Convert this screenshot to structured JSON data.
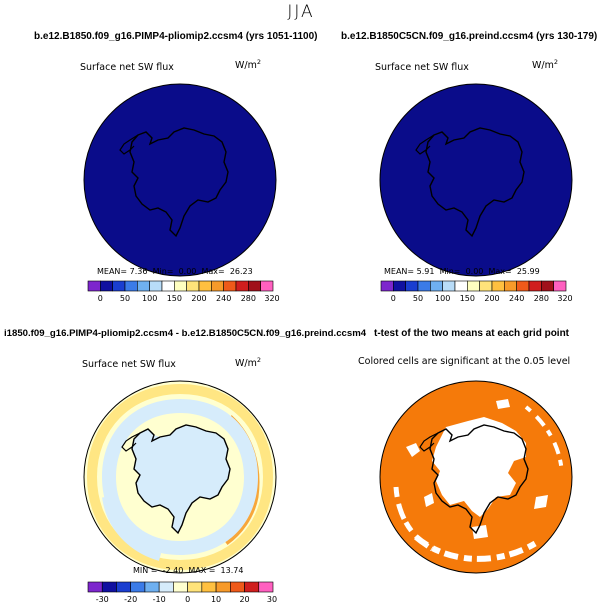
{
  "page_title": "JJA",
  "colors": {
    "ocean_uniform": "#0a0c8a",
    "pos_light": "#ffffd0",
    "neg_light": "#d6ecfb",
    "pos_yellow": "#ffe37a",
    "pos_orange": "#f7a63a",
    "signif": "#f57a0a"
  },
  "panels": [
    {
      "title": "b.e12.B1850.f09_g16.PIMP4-pliomip2.ccsm4 (yrs 1051-1100)",
      "variable": "Surface net SW flux",
      "units_base": "W/m",
      "units_exp": "2",
      "stats": {
        "mean_label": "MEAN=",
        "mean": "7.36",
        "min_label": "Min=",
        "min": "0.00",
        "max_label": "Max=",
        "max": "26.23"
      }
    },
    {
      "title": "b.e12.B1850C5CN.f09_g16.preind.ccsm4 (yrs 130-179)",
      "variable": "Surface net SW flux",
      "units_base": "W/m",
      "units_exp": "2",
      "stats": {
        "mean_label": "MEAN=",
        "mean": "5.91",
        "min_label": "Min=",
        "min": "0.00",
        "max_label": "Max=",
        "max": "25.99"
      }
    },
    {
      "title": "i1850.f09_g16.PIMP4-pliomip2.ccsm4 - b.e12.B1850C5CN.f09_g16.preind.ccsm4",
      "variable": "Surface net SW flux",
      "units_base": "W/m",
      "units_exp": "2",
      "stats_text": "MIN =  -2.40  MAX =  13.74"
    },
    {
      "title": "t-test of the two means at each grid point",
      "variable": "Colored cells are significant at the 0.05 level"
    }
  ],
  "chart_data": [
    {
      "type": "heatmap",
      "projection": "south polar stereographic",
      "title": "b.e12.B1850.f09_g16.PIMP4-pliomip2.ccsm4 (yrs 1051-1100)",
      "variable": "Surface net SW flux",
      "units": "W/m^2",
      "stats": {
        "mean": 7.36,
        "min": 0.0,
        "max": 26.23
      },
      "colorbar": {
        "ticks": [
          "0",
          "50",
          "100",
          "150",
          "200",
          "240",
          "280",
          "320"
        ],
        "colors": [
          "#7d26cd",
          "#1010a0",
          "#1a3ed0",
          "#3b7be8",
          "#6fb0f0",
          "#b8dcf8",
          "#ffffff",
          "#ffffc0",
          "#ffe37a",
          "#ffc040",
          "#f79a2a",
          "#ef5a1a",
          "#d01e1e",
          "#a0101a",
          "#ff60c0"
        ]
      }
    },
    {
      "type": "heatmap",
      "projection": "south polar stereographic",
      "title": "b.e12.B1850C5CN.f09_g16.preind.ccsm4 (yrs 130-179)",
      "variable": "Surface net SW flux",
      "units": "W/m^2",
      "stats": {
        "mean": 5.91,
        "min": 0.0,
        "max": 25.99
      },
      "colorbar": {
        "ticks": [
          "0",
          "50",
          "100",
          "150",
          "200",
          "240",
          "280",
          "320"
        ],
        "colors": [
          "#7d26cd",
          "#1010a0",
          "#1a3ed0",
          "#3b7be8",
          "#6fb0f0",
          "#b8dcf8",
          "#ffffff",
          "#ffffc0",
          "#ffe37a",
          "#ffc040",
          "#f79a2a",
          "#ef5a1a",
          "#d01e1e",
          "#a0101a",
          "#ff60c0"
        ]
      }
    },
    {
      "type": "heatmap",
      "projection": "south polar stereographic",
      "title": "i1850.f09_g16.PIMP4-pliomip2.ccsm4 - b.e12.B1850C5CN.f09_g16.preind.ccsm4",
      "variable": "Surface net SW flux",
      "units": "W/m^2",
      "stats": {
        "min": -2.4,
        "max": 13.74
      },
      "colorbar": {
        "ticks": [
          "-30",
          "-20",
          "-10",
          "0",
          "10",
          "20",
          "30"
        ],
        "colors": [
          "#7d26cd",
          "#1010a0",
          "#1a3ed0",
          "#3b7be8",
          "#6fb0f0",
          "#d6ecfb",
          "#ffffd0",
          "#ffe37a",
          "#ffc040",
          "#f79a2a",
          "#ef5a1a",
          "#d01e1e",
          "#ff60c0"
        ]
      }
    },
    {
      "type": "heatmap",
      "projection": "south polar stereographic",
      "title": "t-test of the two means at each grid point",
      "subtitle": "Colored cells are significant at the 0.05 level",
      "significance_level": 0.05
    }
  ]
}
